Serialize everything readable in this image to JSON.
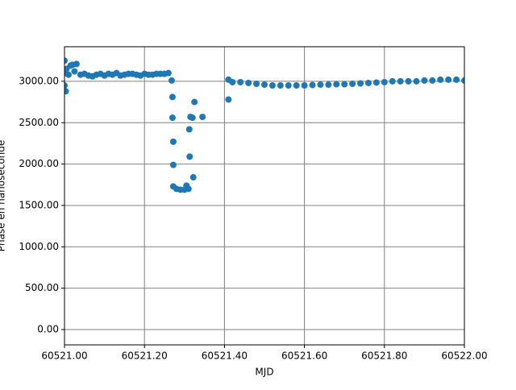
{
  "chart_data": {
    "type": "scatter",
    "xlabel": "MJD",
    "ylabel": "Phase en nanoseconde",
    "color": "#1f77b4",
    "grid": true,
    "xlim": [
      60521.0,
      60522.0
    ],
    "ylim": [
      -185,
      3418
    ],
    "xticks": [
      {
        "value": 60521.0,
        "label": "60521.00"
      },
      {
        "value": 60521.2,
        "label": "60521.20"
      },
      {
        "value": 60521.4,
        "label": "60521.40"
      },
      {
        "value": 60521.6,
        "label": "60521.60"
      },
      {
        "value": 60521.8,
        "label": "60521.80"
      },
      {
        "value": 60522.0,
        "label": "60522.00"
      }
    ],
    "yticks": [
      {
        "value": 0,
        "label": "0.00"
      },
      {
        "value": 500,
        "label": "500.00"
      },
      {
        "value": 1000,
        "label": "1000.00"
      },
      {
        "value": 1500,
        "label": "1500.00"
      },
      {
        "value": 2000,
        "label": "2000.00"
      },
      {
        "value": 2500,
        "label": "2500.00"
      },
      {
        "value": 3000,
        "label": "3000.00"
      }
    ],
    "x": [
      60521.0,
      60521.0,
      60521.0,
      60521.003,
      60521.005,
      60521.01,
      60521.015,
      60521.02,
      60521.025,
      60521.03,
      60521.04,
      60521.05,
      60521.06,
      60521.07,
      60521.08,
      60521.09,
      60521.1,
      60521.11,
      60521.12,
      60521.13,
      60521.14,
      60521.15,
      60521.16,
      60521.17,
      60521.18,
      60521.19,
      60521.2,
      60521.21,
      60521.22,
      60521.23,
      60521.24,
      60521.25,
      60521.26,
      60521.268,
      60521.27,
      60521.27,
      60521.272,
      60521.272,
      60521.272,
      60521.28,
      60521.29,
      60521.3,
      60521.305,
      60521.31,
      60521.312,
      60521.313,
      60521.315,
      60521.32,
      60521.322,
      60521.325,
      60521.345,
      60521.41,
      60521.41,
      60521.42,
      60521.44,
      60521.46,
      60521.48,
      60521.5,
      60521.52,
      60521.54,
      60521.56,
      60521.58,
      60521.6,
      60521.62,
      60521.64,
      60521.66,
      60521.68,
      60521.7,
      60521.72,
      60521.74,
      60521.76,
      60521.78,
      60521.8,
      60521.82,
      60521.84,
      60521.86,
      60521.88,
      60521.9,
      60521.92,
      60521.94,
      60521.96,
      60521.98,
      60522.0
    ],
    "values": [
      3250,
      3100,
      2950,
      2880,
      3150,
      3080,
      3190,
      3200,
      3120,
      3210,
      3080,
      3090,
      3070,
      3060,
      3080,
      3090,
      3070,
      3090,
      3080,
      3100,
      3070,
      3080,
      3090,
      3090,
      3080,
      3070,
      3090,
      3080,
      3080,
      3090,
      3090,
      3090,
      3100,
      3010,
      2810,
      2560,
      2270,
      1990,
      1730,
      1700,
      1690,
      1690,
      1740,
      1700,
      2420,
      2090,
      2570,
      2560,
      1840,
      2750,
      2570,
      2780,
      3020,
      2990,
      2990,
      2980,
      2970,
      2960,
      2950,
      2950,
      2950,
      2950,
      2950,
      2955,
      2960,
      2960,
      2965,
      2965,
      2970,
      2975,
      2980,
      2985,
      2990,
      3000,
      3000,
      3000,
      3000,
      3010,
      3010,
      3020,
      3020,
      3020,
      3010
    ]
  }
}
